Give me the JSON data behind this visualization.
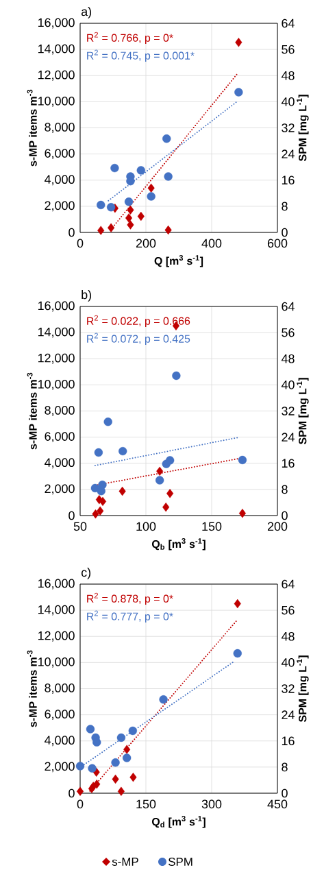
{
  "chart_data": [
    {
      "type": "scatter",
      "title": "a)",
      "xlabel": "Q [m$^{3}$ s$^{-1}$]",
      "ylabel": "s-MP items m$^{-3}$",
      "y2label": "SPM [mg L$^{-1}$]",
      "annotations": [
        "R$^{2}$ = 0.766, p = 0*",
        "R$^{2}$ = 0.745, p = 0.001*"
      ],
      "xlim": [
        0,
        600
      ],
      "xticks": [
        0,
        200,
        400,
        600
      ],
      "ylim": [
        0,
        16000
      ],
      "yticks": [
        0,
        {
          "value": 2000,
          "label": "2,000"
        },
        {
          "value": 4000,
          "label": "4,000"
        },
        {
          "value": 6000,
          "label": "6,000"
        },
        {
          "value": 8000,
          "label": "8,000"
        },
        {
          "value": 10000,
          "label": "10,000"
        },
        {
          "value": 12000,
          "label": "12,000"
        },
        {
          "value": 14000,
          "label": "14,000"
        },
        {
          "value": 16000,
          "label": "16,000"
        }
      ],
      "y2lim": [
        0,
        64
      ],
      "y2ticks": [
        0,
        8,
        16,
        24,
        32,
        40,
        48,
        56,
        64
      ],
      "grid": true,
      "series": [
        {
          "color": "#c00000",
          "marker": "diamond",
          "x": [
            63,
            94,
            106,
            148,
            153,
            153,
            185,
            216,
            268,
            482
          ],
          "values": [
            150,
            350,
            1850,
            1100,
            1720,
            580,
            1230,
            3390,
            180,
            14540
          ]
        },
        {
          "axis": "y2",
          "color": "#4472c4",
          "marker": "circle",
          "x": [
            63,
            94,
            105,
            148,
            153,
            153,
            185,
            216,
            263,
            268,
            482
          ],
          "values": [
            8.4,
            7.7,
            19.7,
            9.4,
            17.1,
            15.7,
            19.0,
            11.0,
            28.7,
            17.1,
            42.9
          ]
        },
        {
          "type": "line",
          "color": "#c00000",
          "line_style": "dotted",
          "marker": "none",
          "x": [
            94,
            480
          ],
          "values": [
            230,
            12200
          ]
        },
        {
          "type": "line",
          "axis": "y2",
          "color": "#4472c4",
          "line_style": "dotted",
          "marker": "none",
          "x": [
            86,
            478
          ],
          "values": [
            9.7,
            40.1
          ]
        }
      ]
    },
    {
      "type": "scatter",
      "title": "b)",
      "xlabel": "Q$_{b}$ [m$^{3}$ s$^{-1}$]",
      "ylabel": "s-MP items m$^{-3}$",
      "y2label": "SPM [mg L$^{-1}$]",
      "annotations": [
        "R$^{2}$ = 0.022, p = 0.666",
        "R$^{2}$ = 0.072, p = 0.425"
      ],
      "xlim": [
        50,
        200
      ],
      "xticks": [
        50,
        100,
        150,
        200
      ],
      "ylim": [
        0,
        16000
      ],
      "yticks": [
        0,
        {
          "value": 2000,
          "label": "2,000"
        },
        {
          "value": 4000,
          "label": "4,000"
        },
        {
          "value": 6000,
          "label": "6,000"
        },
        {
          "value": 8000,
          "label": "8,000"
        },
        {
          "value": 10000,
          "label": "10,000"
        },
        {
          "value": 12000,
          "label": "12,000"
        },
        {
          "value": 14000,
          "label": "14,000"
        },
        {
          "value": 16000,
          "label": "16,000"
        }
      ],
      "y2lim": [
        0,
        64
      ],
      "y2ticks": [
        0,
        8,
        16,
        24,
        32,
        40,
        48,
        56,
        64
      ],
      "grid": true,
      "series": [
        {
          "color": "#c00000",
          "marker": "diamond",
          "x": [
            61.7,
            65.2,
            64.5,
            67.2,
            82.1,
            110.5,
            118.3,
            115.2,
            122.9,
            173.4
          ],
          "values": [
            120,
            350,
            1220,
            1080,
            1860,
            3390,
            1690,
            640,
            14520,
            170
          ]
        },
        {
          "axis": "y2",
          "color": "#4472c4",
          "marker": "circle",
          "x": [
            61.4,
            66.0,
            66.9,
            64.0,
            71.2,
            82.4,
            110.5,
            115.5,
            118.3,
            123.1,
            173.4
          ],
          "values": [
            8.4,
            7.5,
            9.4,
            19.3,
            28.7,
            19.7,
            10.8,
            15.8,
            16.9,
            42.8,
            17.0
          ]
        },
        {
          "type": "line",
          "color": "#c00000",
          "line_style": "dotted",
          "marker": "none",
          "x": [
            61.4,
            170.3
          ],
          "values": [
            2310,
            4350
          ]
        },
        {
          "type": "line",
          "axis": "y2",
          "color": "#4472c4",
          "line_style": "dotted",
          "marker": "none",
          "x": [
            61.4,
            170.3
          ],
          "values": [
            15.3,
            23.9
          ]
        }
      ]
    },
    {
      "type": "scatter",
      "title": "c)",
      "xlabel": "Q$_{d}$ [m$^{3}$ s$^{-1}$]",
      "ylabel": "s-MP items m$^{-3}$",
      "y2label": "SPM [mg L$^{-1}$]",
      "annotations": [
        "R$^{2}$ = 0.878, p = 0*",
        "R$^{2}$ = 0.777, p = 0*"
      ],
      "xlim": [
        0,
        450
      ],
      "xticks": [
        0,
        150,
        300,
        450
      ],
      "ylim": [
        0,
        16000
      ],
      "yticks": [
        0,
        {
          "value": 2000,
          "label": "2,000"
        },
        {
          "value": 4000,
          "label": "4,000"
        },
        {
          "value": 6000,
          "label": "6,000"
        },
        {
          "value": 8000,
          "label": "8,000"
        },
        {
          "value": 10000,
          "label": "10,000"
        },
        {
          "value": 12000,
          "label": "12,000"
        },
        {
          "value": 14000,
          "label": "14,000"
        },
        {
          "value": 16000,
          "label": "16,000"
        }
      ],
      "y2lim": [
        0,
        64
      ],
      "y2ticks": [
        0,
        8,
        16,
        24,
        32,
        40,
        48,
        56,
        64
      ],
      "grid": true,
      "legend": "bottom",
      "series": [
        {
          "name": "s-MP",
          "color": "#c00000",
          "marker": "diamond",
          "x": [
            0,
            23,
            37,
            26.5,
            30,
            37.9,
            80.6,
            93.6,
            106.5,
            121,
            359
          ],
          "values": [
            140,
            null,
            1610,
            350,
            520,
            690,
            1080,
            140,
            3350,
            1220,
            14500
          ]
        },
        {
          "name": "SPM",
          "axis": "y2",
          "color": "#4472c4",
          "marker": "circle",
          "x": [
            0,
            27.5,
            23.4,
            35.3,
            37.9,
            80.6,
            93.6,
            106.5,
            120,
            190,
            359
          ],
          "values": [
            8.3,
            7.6,
            19.6,
            17.0,
            15.6,
            9.4,
            17.0,
            10.8,
            19.1,
            28.7,
            42.8
          ]
        },
        {
          "type": "line",
          "color": "#c00000",
          "line_style": "dotted",
          "marker": "none",
          "x": [
            22.3,
            359
          ],
          "values": [
            170,
            13280
          ]
        },
        {
          "type": "line",
          "axis": "y2",
          "color": "#4472c4",
          "line_style": "dotted",
          "marker": "none",
          "x": [
            4,
            350
          ],
          "values": [
            8.3,
            40.2
          ]
        }
      ]
    }
  ]
}
